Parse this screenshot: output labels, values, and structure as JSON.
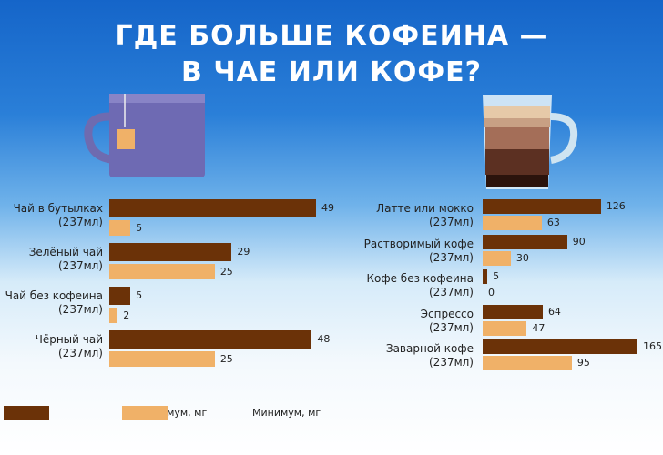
{
  "title": [
    "ГДЕ БОЛЬШЕ КОФЕИНА —",
    "В ЧАЕ ИЛИ КОФЕ?"
  ],
  "chart_data": [
    {
      "type": "hbar",
      "categories": [
        "Чай в бутылках\n(237мл)",
        "Зелёный чай\n(237мл)",
        "Чай без кофеина\n(237мл)",
        "Чёрный чай\n(237мл)"
      ],
      "series": [
        {
          "name": "Максимум, мг",
          "color": "#6b3208",
          "values": [
            49,
            29,
            5,
            48
          ]
        },
        {
          "name": "Минимум, мг",
          "color": "#f0b168",
          "values": [
            5,
            25,
            2,
            25
          ]
        }
      ],
      "xlim": [
        0,
        49
      ]
    },
    {
      "type": "hbar",
      "categories": [
        "Латте или мокко\n(237мл)",
        "Растворимый кофе\n(237мл)",
        "Кофе без кофеина\n(237мл)",
        "Эспрессо\n(237мл)",
        "Заварной кофе\n(237мл)"
      ],
      "series": [
        {
          "color": "#6b3208",
          "values": [
            126,
            90,
            5,
            64,
            165
          ]
        },
        {
          "color": "#f0b168",
          "values": [
            63,
            30,
            0,
            47,
            95
          ]
        }
      ],
      "xlim": [
        0,
        165
      ]
    }
  ]
}
